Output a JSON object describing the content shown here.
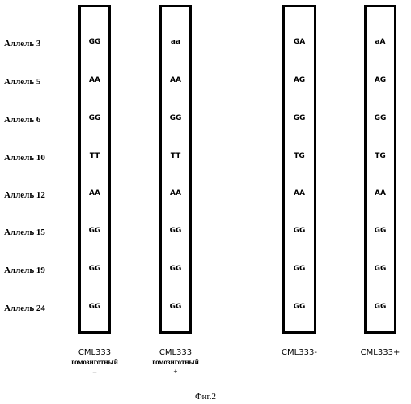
{
  "rows": [
    "Аллель 3",
    "Аллель 5",
    "Аллель 6",
    "Аллель 10",
    "Аллель 12",
    "Аллель 15",
    "Аллель 19",
    "Аллель 24"
  ],
  "columns": [
    {
      "name": "CML333",
      "note_line1": "гомозиготный",
      "note_line2": "–",
      "genotypes": [
        "GG",
        "AA",
        "GG",
        "TT",
        "AA",
        "GG",
        "GG",
        "GG"
      ]
    },
    {
      "name": "CML333",
      "note_line1": "гомозиготный",
      "note_line2": "+",
      "genotypes": [
        "aa",
        "AA",
        "GG",
        "TT",
        "AA",
        "GG",
        "GG",
        "GG"
      ]
    },
    {
      "name": "CML333-",
      "note_line1": "",
      "note_line2": "",
      "genotypes": [
        "GA",
        "AG",
        "GG",
        "TG",
        "AA",
        "GG",
        "GG",
        "GG"
      ]
    },
    {
      "name": "CML333+",
      "note_line1": "",
      "note_line2": "",
      "genotypes": [
        "aA",
        "AG",
        "GG",
        "TG",
        "AA",
        "GG",
        "GG",
        "GG"
      ]
    }
  ],
  "caption": "Фиг.2"
}
